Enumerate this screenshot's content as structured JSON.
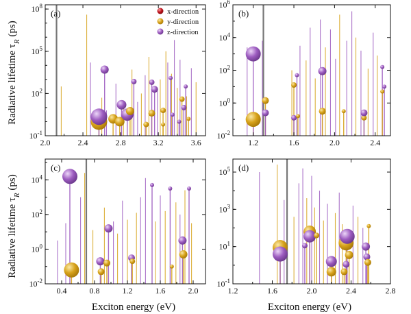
{
  "figure": {
    "ylabel": "Radiative lifetime τ_R (ps)",
    "xlabel": "Exciton energy (eV)"
  },
  "legend": [
    {
      "label": "x-direction",
      "color": "#c0121c"
    },
    {
      "label": "y-direction",
      "color": "#d7a21a"
    },
    {
      "label": "z-direction",
      "color": "#9d5cc0"
    }
  ],
  "colors": {
    "y": "#d7a21a",
    "z": "#9d5cc0",
    "vline": "#777777"
  },
  "chart_data": [
    {
      "type": "scatter",
      "panel_label": "(a)",
      "xlim": [
        2.0,
        3.7
      ],
      "ylim_log10": [
        -1,
        8.3
      ],
      "xticks": [
        "2.0",
        "2.4",
        "2.8",
        "3.2",
        "3.6"
      ],
      "xtick_values": [
        2.0,
        2.4,
        2.8,
        3.2,
        3.6
      ],
      "yticks": [
        "10^-1",
        "10^2",
        "10^5",
        "10^8"
      ],
      "ytick_values": [
        -1,
        2,
        5,
        8
      ],
      "vline_x": 2.12,
      "points": [
        {
          "x": 2.57,
          "log10_tau": 0.0,
          "size": 12,
          "dir": "y"
        },
        {
          "x": 2.57,
          "log10_tau": 0.35,
          "size": 12,
          "dir": "z"
        },
        {
          "x": 2.63,
          "log10_tau": 3.7,
          "size": 6,
          "dir": "z"
        },
        {
          "x": 2.72,
          "log10_tau": 0.2,
          "size": 7,
          "dir": "y"
        },
        {
          "x": 2.79,
          "log10_tau": 0.0,
          "size": 7,
          "dir": "y"
        },
        {
          "x": 2.81,
          "log10_tau": 1.2,
          "size": 7,
          "dir": "z"
        },
        {
          "x": 2.87,
          "log10_tau": 0.5,
          "size": 9,
          "dir": "z"
        },
        {
          "x": 2.9,
          "log10_tau": 0.75,
          "size": 6,
          "dir": "y"
        },
        {
          "x": 2.94,
          "log10_tau": 2.85,
          "size": 4,
          "dir": "z"
        },
        {
          "x": 3.13,
          "log10_tau": 0.6,
          "size": 5,
          "dir": "y"
        },
        {
          "x": 3.13,
          "log10_tau": 2.8,
          "size": 4,
          "dir": "z"
        },
        {
          "x": 3.07,
          "log10_tau": -0.2,
          "size": 4,
          "dir": "y"
        },
        {
          "x": 3.16,
          "log10_tau": 2.3,
          "size": 5,
          "dir": "z"
        },
        {
          "x": 3.25,
          "log10_tau": 0.8,
          "size": 4,
          "dir": "y"
        },
        {
          "x": 3.25,
          "log10_tau": -0.2,
          "size": 3,
          "dir": "y"
        },
        {
          "x": 3.33,
          "log10_tau": 3.1,
          "size": 3,
          "dir": "z"
        },
        {
          "x": 3.35,
          "log10_tau": 0.5,
          "size": 3,
          "dir": "z"
        },
        {
          "x": 3.45,
          "log10_tau": 1.6,
          "size": 4,
          "dir": "y"
        },
        {
          "x": 3.47,
          "log10_tau": 1.0,
          "size": 4,
          "dir": "z"
        },
        {
          "x": 3.42,
          "log10_tau": 0.0,
          "size": 3,
          "dir": "z"
        },
        {
          "x": 3.49,
          "log10_tau": 2.5,
          "size": 3,
          "dir": "z"
        },
        {
          "x": 3.52,
          "log10_tau": 0.2,
          "size": 3,
          "dir": "y"
        }
      ],
      "sticks": [
        {
          "x": 2.17,
          "log10_tau": 2.5,
          "dir": "y"
        },
        {
          "x": 2.44,
          "log10_tau": 7.6,
          "dir": "y"
        },
        {
          "x": 2.48,
          "log10_tau": 4.2,
          "dir": "z"
        },
        {
          "x": 2.6,
          "log10_tau": 1.7,
          "dir": "y"
        },
        {
          "x": 2.65,
          "log10_tau": 0.8,
          "dir": "z"
        },
        {
          "x": 2.75,
          "log10_tau": 2.7,
          "dir": "z"
        },
        {
          "x": 2.83,
          "log10_tau": 1.5,
          "dir": "y"
        },
        {
          "x": 2.92,
          "log10_tau": 3.7,
          "dir": "y"
        },
        {
          "x": 2.98,
          "log10_tau": 1.4,
          "dir": "z"
        },
        {
          "x": 3.02,
          "log10_tau": 2.0,
          "dir": "y"
        },
        {
          "x": 3.06,
          "log10_tau": 3.3,
          "dir": "z"
        },
        {
          "x": 3.1,
          "log10_tau": 4.6,
          "dir": "y"
        },
        {
          "x": 3.19,
          "log10_tau": 2.2,
          "dir": "z"
        },
        {
          "x": 3.22,
          "log10_tau": 3.0,
          "dir": "y"
        },
        {
          "x": 3.28,
          "log10_tau": 5.0,
          "dir": "y"
        },
        {
          "x": 3.3,
          "log10_tau": 4.2,
          "dir": "z"
        },
        {
          "x": 3.34,
          "log10_tau": 3.4,
          "dir": "y"
        },
        {
          "x": 3.37,
          "log10_tau": 5.8,
          "dir": "z"
        },
        {
          "x": 3.4,
          "log10_tau": 2.4,
          "dir": "y"
        },
        {
          "x": 3.43,
          "log10_tau": 4.4,
          "dir": "z"
        },
        {
          "x": 3.5,
          "log10_tau": 1.8,
          "dir": "y"
        },
        {
          "x": 3.55,
          "log10_tau": 3.8,
          "dir": "z"
        },
        {
          "x": 3.6,
          "log10_tau": 2.8,
          "dir": "y"
        }
      ]
    },
    {
      "type": "scatter",
      "panel_label": "(b)",
      "xlim": [
        1.0,
        2.55
      ],
      "ylim_log10": [
        -2,
        6
      ],
      "xticks": [
        "1.2",
        "1.6",
        "2.0",
        "2.4"
      ],
      "xtick_values": [
        1.2,
        1.6,
        2.0,
        2.4
      ],
      "yticks": [
        "10^-2",
        "10^0",
        "10^2",
        "10^4",
        "10^6"
      ],
      "ytick_values": [
        -2,
        0,
        2,
        4,
        6
      ],
      "vline_x": 1.3,
      "points": [
        {
          "x": 1.2,
          "log10_tau": -1.0,
          "size": 11,
          "dir": "y"
        },
        {
          "x": 1.2,
          "log10_tau": 3.0,
          "size": 11,
          "dir": "z"
        },
        {
          "x": 1.32,
          "log10_tau": 0.15,
          "size": 5,
          "dir": "y"
        },
        {
          "x": 1.32,
          "log10_tau": -0.6,
          "size": 5,
          "dir": "z"
        },
        {
          "x": 1.6,
          "log10_tau": 1.1,
          "size": 4,
          "dir": "y"
        },
        {
          "x": 1.63,
          "log10_tau": 1.7,
          "size": 3,
          "dir": "z"
        },
        {
          "x": 1.6,
          "log10_tau": -0.9,
          "size": 4,
          "dir": "z"
        },
        {
          "x": 1.64,
          "log10_tau": -0.8,
          "size": 3,
          "dir": "y"
        },
        {
          "x": 1.88,
          "log10_tau": 1.95,
          "size": 6,
          "dir": "z"
        },
        {
          "x": 1.88,
          "log10_tau": -0.5,
          "size": 5,
          "dir": "y"
        },
        {
          "x": 2.09,
          "log10_tau": -0.5,
          "size": 3,
          "dir": "y"
        },
        {
          "x": 2.29,
          "log10_tau": -0.9,
          "size": 4,
          "dir": "y"
        },
        {
          "x": 2.29,
          "log10_tau": -0.6,
          "size": 5,
          "dir": "z"
        },
        {
          "x": 2.47,
          "log10_tau": 2.2,
          "size": 3,
          "dir": "z"
        },
        {
          "x": 2.47,
          "log10_tau": 0.7,
          "size": 3,
          "dir": "y"
        },
        {
          "x": 2.49,
          "log10_tau": 1.0,
          "size": 3,
          "dir": "z"
        }
      ],
      "sticks": [
        {
          "x": 1.14,
          "log10_tau": 3.4,
          "dir": "z"
        },
        {
          "x": 1.29,
          "log10_tau": 3.8,
          "dir": "z"
        },
        {
          "x": 1.58,
          "log10_tau": 2.0,
          "dir": "y"
        },
        {
          "x": 1.66,
          "log10_tau": 3.5,
          "dir": "z"
        },
        {
          "x": 1.72,
          "log10_tau": 2.6,
          "dir": "y"
        },
        {
          "x": 1.76,
          "log10_tau": 4.6,
          "dir": "z"
        },
        {
          "x": 1.81,
          "log10_tau": 1.5,
          "dir": "y"
        },
        {
          "x": 1.86,
          "log10_tau": 5.1,
          "dir": "z"
        },
        {
          "x": 1.91,
          "log10_tau": 3.4,
          "dir": "y"
        },
        {
          "x": 1.96,
          "log10_tau": 4.5,
          "dir": "z"
        },
        {
          "x": 2.01,
          "log10_tau": 2.7,
          "dir": "z"
        },
        {
          "x": 2.05,
          "log10_tau": 5.4,
          "dir": "y"
        },
        {
          "x": 2.12,
          "log10_tau": 3.8,
          "dir": "z"
        },
        {
          "x": 2.17,
          "log10_tau": 5.6,
          "dir": "z"
        },
        {
          "x": 2.21,
          "log10_tau": 4.0,
          "dir": "y"
        },
        {
          "x": 2.26,
          "log10_tau": 3.2,
          "dir": "z"
        },
        {
          "x": 2.33,
          "log10_tau": 2.1,
          "dir": "y"
        },
        {
          "x": 2.38,
          "log10_tau": 4.3,
          "dir": "z"
        },
        {
          "x": 2.42,
          "log10_tau": 2.9,
          "dir": "y"
        }
      ]
    },
    {
      "type": "scatter",
      "panel_label": "(c)",
      "xlim": [
        0.2,
        2.15
      ],
      "ylim_log10": [
        -2,
        5.2
      ],
      "xticks": [
        "0.4",
        "0.8",
        "1.2",
        "1.6",
        "2.0"
      ],
      "xtick_values": [
        0.4,
        0.8,
        1.2,
        1.6,
        2.0
      ],
      "yticks": [
        "10^-2",
        "10^0",
        "10^2",
        "10^4"
      ],
      "ytick_values": [
        -2,
        0,
        2,
        4
      ],
      "vline_x": 0.7,
      "points": [
        {
          "x": 0.5,
          "log10_tau": 4.2,
          "size": 11,
          "dir": "z"
        },
        {
          "x": 0.52,
          "log10_tau": -1.2,
          "size": 11,
          "dir": "y"
        },
        {
          "x": 0.87,
          "log10_tau": -0.7,
          "size": 6,
          "dir": "z"
        },
        {
          "x": 0.88,
          "log10_tau": -1.3,
          "size": 5,
          "dir": "y"
        },
        {
          "x": 0.95,
          "log10_tau": -0.8,
          "size": 5,
          "dir": "y"
        },
        {
          "x": 0.97,
          "log10_tau": 1.2,
          "size": 6,
          "dir": "z"
        },
        {
          "x": 1.25,
          "log10_tau": -0.5,
          "size": 5,
          "dir": "z"
        },
        {
          "x": 1.26,
          "log10_tau": -0.7,
          "size": 4,
          "dir": "y"
        },
        {
          "x": 1.5,
          "log10_tau": 3.7,
          "size": 3,
          "dir": "z"
        },
        {
          "x": 1.72,
          "log10_tau": 3.5,
          "size": 3,
          "dir": "z"
        },
        {
          "x": 1.74,
          "log10_tau": -1.0,
          "size": 3,
          "dir": "y"
        },
        {
          "x": 1.87,
          "log10_tau": 0.5,
          "size": 6,
          "dir": "z"
        },
        {
          "x": 1.88,
          "log10_tau": -0.3,
          "size": 6,
          "dir": "y"
        },
        {
          "x": 1.95,
          "log10_tau": 3.5,
          "size": 3,
          "dir": "z"
        }
      ],
      "sticks": [
        {
          "x": 0.35,
          "log10_tau": 0.5,
          "dir": "z"
        },
        {
          "x": 0.45,
          "log10_tau": 1.5,
          "dir": "z"
        },
        {
          "x": 0.63,
          "log10_tau": 3.0,
          "dir": "z"
        },
        {
          "x": 0.68,
          "log10_tau": 4.4,
          "dir": "y"
        },
        {
          "x": 0.78,
          "log10_tau": 1.1,
          "dir": "y"
        },
        {
          "x": 0.92,
          "log10_tau": 2.4,
          "dir": "y"
        },
        {
          "x": 1.03,
          "log10_tau": 1.6,
          "dir": "z"
        },
        {
          "x": 1.08,
          "log10_tau": 0.9,
          "dir": "y"
        },
        {
          "x": 1.14,
          "log10_tau": 2.8,
          "dir": "z"
        },
        {
          "x": 1.2,
          "log10_tau": 1.7,
          "dir": "y"
        },
        {
          "x": 1.31,
          "log10_tau": 2.1,
          "dir": "y"
        },
        {
          "x": 1.36,
          "log10_tau": 3.0,
          "dir": "z"
        },
        {
          "x": 1.42,
          "log10_tau": 4.1,
          "dir": "z"
        },
        {
          "x": 1.54,
          "log10_tau": 1.6,
          "dir": "y"
        },
        {
          "x": 1.6,
          "log10_tau": 3.1,
          "dir": "z"
        },
        {
          "x": 1.66,
          "log10_tau": 2.2,
          "dir": "y"
        },
        {
          "x": 1.79,
          "log10_tau": 2.7,
          "dir": "y"
        },
        {
          "x": 1.84,
          "log10_tau": 2.0,
          "dir": "z"
        },
        {
          "x": 1.9,
          "log10_tau": 3.4,
          "dir": "y"
        },
        {
          "x": 1.98,
          "log10_tau": 1.5,
          "dir": "y"
        }
      ]
    },
    {
      "type": "scatter",
      "panel_label": "(d)",
      "xlim": [
        1.2,
        2.8
      ],
      "ylim_log10": [
        -1,
        5.7
      ],
      "xticks": [
        "1.2",
        "1.6",
        "2.0",
        "2.4",
        "2.8"
      ],
      "xtick_values": [
        1.2,
        1.6,
        2.0,
        2.4,
        2.8
      ],
      "yticks": [
        "10^-1",
        "10^1",
        "10^3",
        "10^5"
      ],
      "ytick_values": [
        -1,
        1,
        3,
        5
      ],
      "vline_x": 1.75,
      "points": [
        {
          "x": 1.68,
          "log10_tau": 0.95,
          "size": 11,
          "dir": "y"
        },
        {
          "x": 1.68,
          "log10_tau": 0.6,
          "size": 11,
          "dir": "z"
        },
        {
          "x": 1.93,
          "log10_tau": 1.05,
          "size": 4,
          "dir": "z"
        },
        {
          "x": 1.98,
          "log10_tau": 1.8,
          "size": 9,
          "dir": "y"
        },
        {
          "x": 1.98,
          "log10_tau": 1.55,
          "size": 9,
          "dir": "z"
        },
        {
          "x": 2.05,
          "log10_tau": 1.6,
          "size": 4,
          "dir": "y"
        },
        {
          "x": 2.2,
          "log10_tau": 0.2,
          "size": 8,
          "dir": "z"
        },
        {
          "x": 2.2,
          "log10_tau": -0.35,
          "size": 7,
          "dir": "y"
        },
        {
          "x": 2.35,
          "log10_tau": 1.2,
          "size": 11,
          "dir": "y"
        },
        {
          "x": 2.36,
          "log10_tau": 1.55,
          "size": 11,
          "dir": "z"
        },
        {
          "x": 2.38,
          "log10_tau": 0.55,
          "size": 6,
          "dir": "y"
        },
        {
          "x": 2.35,
          "log10_tau": 0.05,
          "size": 5,
          "dir": "z"
        },
        {
          "x": 2.33,
          "log10_tau": -0.35,
          "size": 5,
          "dir": "y"
        },
        {
          "x": 2.55,
          "log10_tau": 1.0,
          "size": 6,
          "dir": "z"
        },
        {
          "x": 2.56,
          "log10_tau": 0.45,
          "size": 5,
          "dir": "z"
        },
        {
          "x": 2.57,
          "log10_tau": 0.15,
          "size": 5,
          "dir": "y"
        },
        {
          "x": 2.58,
          "log10_tau": 2.1,
          "size": 3,
          "dir": "y"
        }
      ],
      "sticks": [
        {
          "x": 1.47,
          "log10_tau": 5.0,
          "dir": "z"
        },
        {
          "x": 1.65,
          "log10_tau": 5.4,
          "dir": "y"
        },
        {
          "x": 1.72,
          "log10_tau": 3.5,
          "dir": "z"
        },
        {
          "x": 1.82,
          "log10_tau": 2.6,
          "dir": "y"
        },
        {
          "x": 1.87,
          "log10_tau": 4.4,
          "dir": "z"
        },
        {
          "x": 1.91,
          "log10_tau": 5.2,
          "dir": "z"
        },
        {
          "x": 1.95,
          "log10_tau": 3.6,
          "dir": "y"
        },
        {
          "x": 2.0,
          "log10_tau": 4.8,
          "dir": "z"
        },
        {
          "x": 2.03,
          "log10_tau": 3.1,
          "dir": "y"
        },
        {
          "x": 2.08,
          "log10_tau": 4.0,
          "dir": "z"
        },
        {
          "x": 2.12,
          "log10_tau": 2.4,
          "dir": "y"
        },
        {
          "x": 2.16,
          "log10_tau": 3.3,
          "dir": "z"
        },
        {
          "x": 2.24,
          "log10_tau": 2.8,
          "dir": "y"
        },
        {
          "x": 2.28,
          "log10_tau": 3.9,
          "dir": "z"
        },
        {
          "x": 2.31,
          "log10_tau": 2.2,
          "dir": "y"
        },
        {
          "x": 2.42,
          "log10_tau": 3.2,
          "dir": "z"
        },
        {
          "x": 2.47,
          "log10_tau": 2.6,
          "dir": "y"
        },
        {
          "x": 2.52,
          "log10_tau": 2.0,
          "dir": "z"
        }
      ]
    }
  ]
}
